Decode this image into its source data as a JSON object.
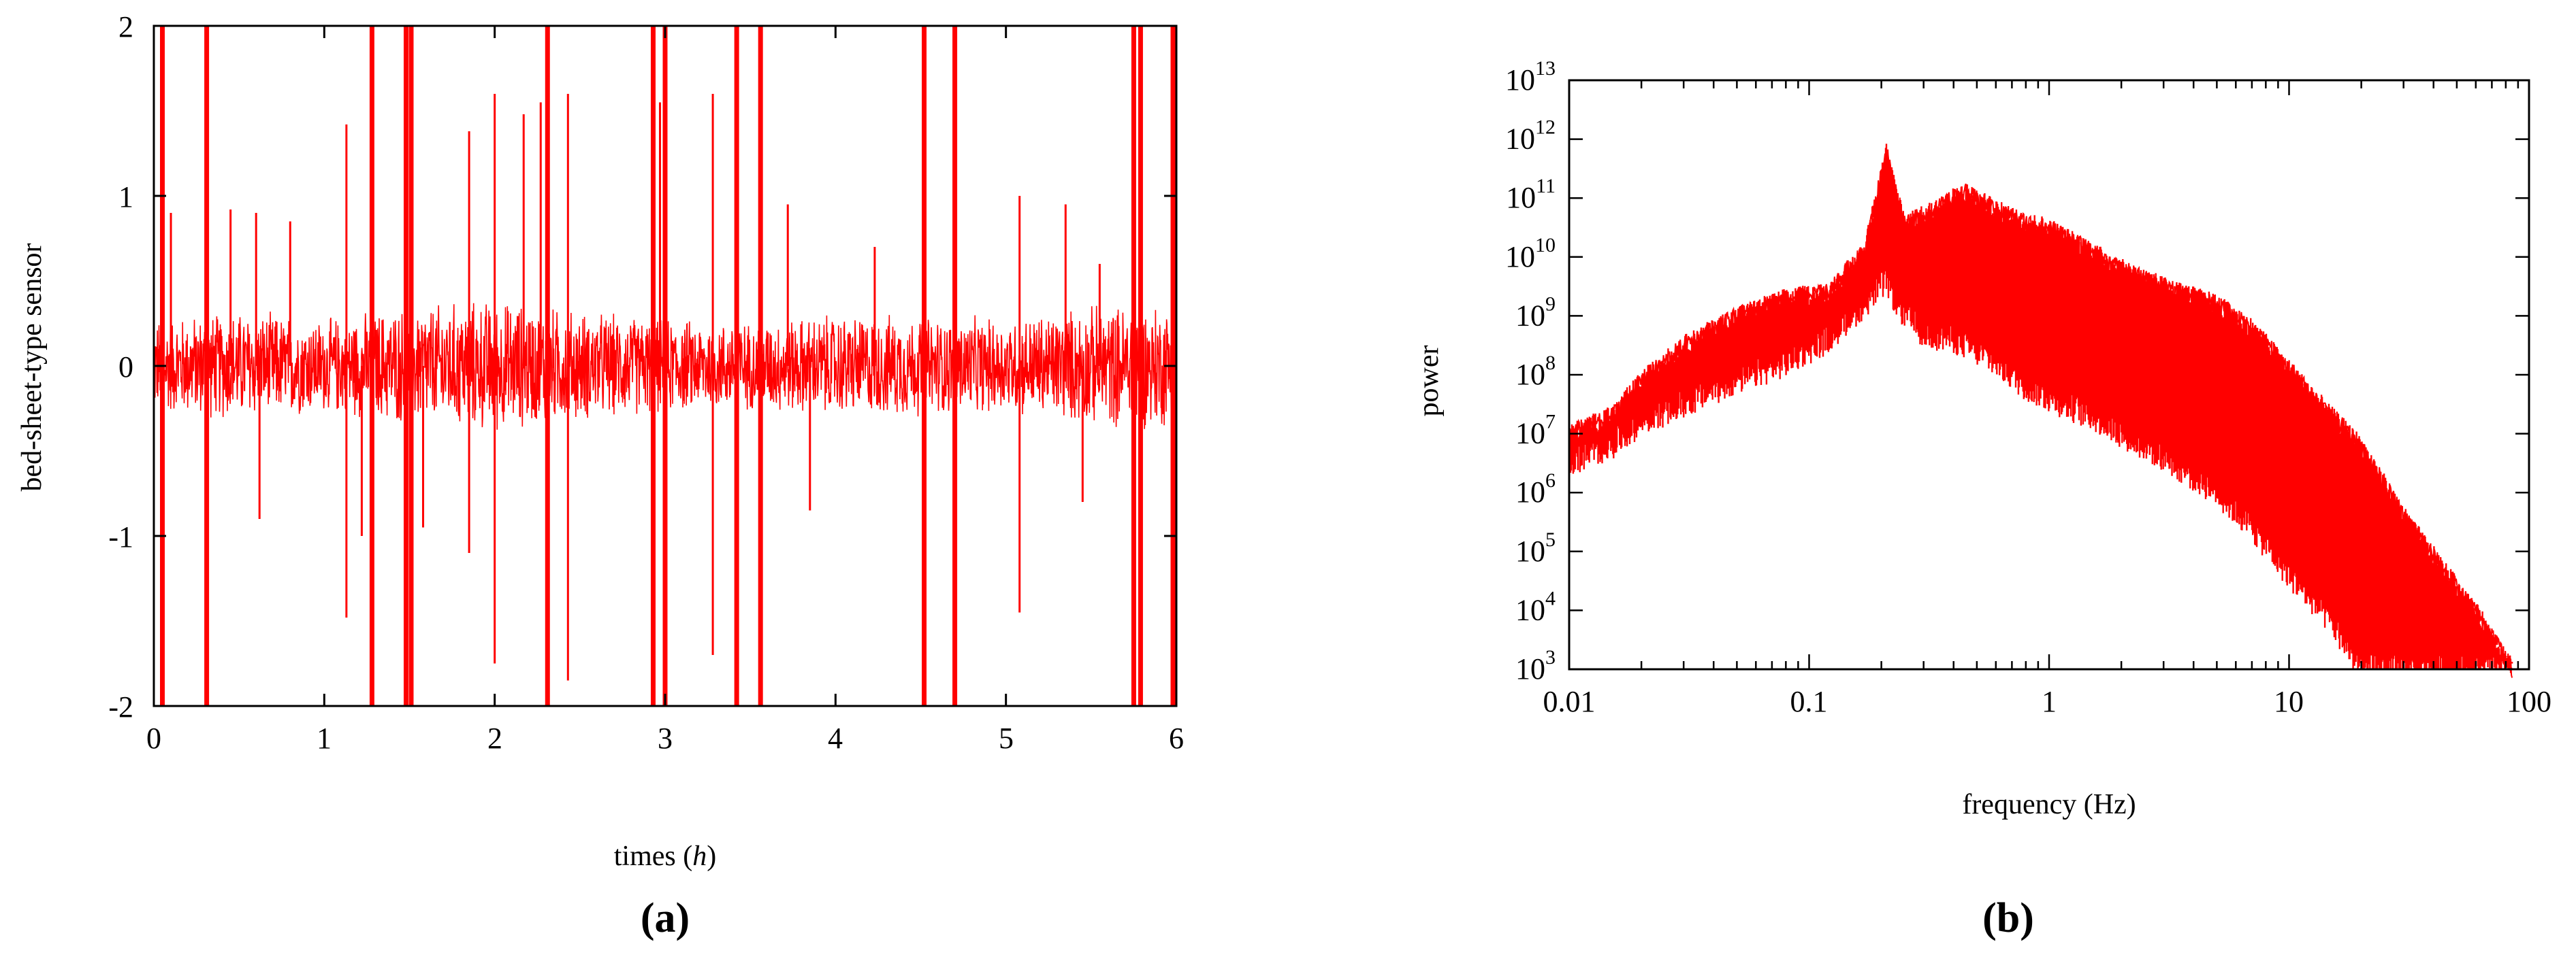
{
  "colors": {
    "series": "#ff0000",
    "axis": "#000000",
    "background": "#ffffff"
  },
  "chart_data": [
    {
      "panel": "(a)",
      "type": "line",
      "xlabel": "times",
      "xlabel_unit": "h",
      "ylabel": "bed-sheet-type sensor",
      "xlim": [
        0,
        6
      ],
      "ylim": [
        -2,
        2
      ],
      "xticks": [
        "0",
        "1",
        "2",
        "3",
        "4",
        "5",
        "6"
      ],
      "yticks": [
        "-2",
        "-1",
        "0",
        "1",
        "2"
      ],
      "grid": false,
      "legend": "none",
      "series": [
        {
          "description_values": "baseline noise envelope amplitude over time (hours)",
          "x": [
            0,
            0.5,
            1,
            1.5,
            2,
            2.5,
            3,
            3.5,
            4,
            4.5,
            5,
            5.5,
            6
          ],
          "envelope": [
            0.3,
            0.35,
            0.3,
            0.38,
            0.42,
            0.35,
            0.3,
            0.28,
            0.33,
            0.32,
            0.3,
            0.38,
            0.4
          ],
          "clipped_spikes_x": [
            0.05,
            0.31,
            1.28,
            1.48,
            1.51,
            2.31,
            2.93,
            3.0,
            3.42,
            3.56,
            4.52,
            4.7,
            5.75,
            5.79,
            5.98
          ],
          "spikes": [
            {
              "x": 0.1,
              "y": 0.9
            },
            {
              "x": 0.45,
              "y": 0.92
            },
            {
              "x": 0.6,
              "y": 0.9
            },
            {
              "x": 0.8,
              "y": 0.85
            },
            {
              "x": 1.13,
              "y": 1.42
            },
            {
              "x": 1.13,
              "y": -1.48
            },
            {
              "x": 1.22,
              "y": -1.0
            },
            {
              "x": 1.85,
              "y": 1.38
            },
            {
              "x": 1.85,
              "y": -1.1
            },
            {
              "x": 2.0,
              "y": 1.6
            },
            {
              "x": 2.0,
              "y": -1.75
            },
            {
              "x": 2.17,
              "y": 1.48
            },
            {
              "x": 2.27,
              "y": 1.55
            },
            {
              "x": 2.43,
              "y": 1.6
            },
            {
              "x": 2.43,
              "y": -1.85
            },
            {
              "x": 2.97,
              "y": 1.55
            },
            {
              "x": 3.28,
              "y": 1.6
            },
            {
              "x": 3.28,
              "y": -1.7
            },
            {
              "x": 3.72,
              "y": 0.95
            },
            {
              "x": 4.23,
              "y": 0.7
            },
            {
              "x": 5.08,
              "y": 1.0
            },
            {
              "x": 5.08,
              "y": -1.45
            },
            {
              "x": 5.35,
              "y": 0.95
            },
            {
              "x": 5.55,
              "y": 0.6
            },
            {
              "x": 5.45,
              "y": -0.8
            },
            {
              "x": 0.62,
              "y": -0.9
            },
            {
              "x": 1.58,
              "y": -0.95
            },
            {
              "x": 3.85,
              "y": -0.85
            }
          ]
        }
      ]
    },
    {
      "panel": "(b)",
      "type": "line",
      "xlabel": "frequency (Hz)",
      "ylabel": "power",
      "xscale": "log",
      "yscale": "log",
      "xlim": [
        0.01,
        100
      ],
      "ylim": [
        1000,
        10000000000000
      ],
      "xticks": [
        "0.01",
        "0.1",
        "1",
        "10",
        "100"
      ],
      "yticks_exponent": [
        3,
        4,
        5,
        6,
        7,
        8,
        9,
        10,
        11,
        12,
        13
      ],
      "ytick_base": "10",
      "grid": false,
      "legend": "none",
      "series": [
        {
          "description_values": "power spectrum band: frequency in Hz, log10 of upper and lower power",
          "x": [
            0.01,
            0.015,
            0.02,
            0.03,
            0.05,
            0.08,
            0.12,
            0.17,
            0.21,
            0.22,
            0.25,
            0.3,
            0.4,
            0.45,
            0.6,
            0.8,
            1.0,
            1.5,
            2.0,
            3.0,
            5.0,
            7.0,
            10,
            15,
            20,
            30,
            50,
            70,
            85
          ],
          "log_upper": [
            7.0,
            7.3,
            7.9,
            8.5,
            9.0,
            9.3,
            9.4,
            10.1,
            11.8,
            11.4,
            10.6,
            10.7,
            11.0,
            11.1,
            10.8,
            10.6,
            10.5,
            10.1,
            9.8,
            9.5,
            9.2,
            8.8,
            8.1,
            7.3,
            6.8,
            5.6,
            4.4,
            3.6,
            3.0
          ],
          "log_lower": [
            6.5,
            6.8,
            7.2,
            7.5,
            7.9,
            8.2,
            8.6,
            9.2,
            9.6,
            9.4,
            9.0,
            8.7,
            8.6,
            8.5,
            8.2,
            7.8,
            7.6,
            7.3,
            7.0,
            6.6,
            6.0,
            5.4,
            4.6,
            3.8,
            3.0,
            3.0,
            3.0,
            3.0,
            3.0
          ]
        }
      ]
    }
  ]
}
